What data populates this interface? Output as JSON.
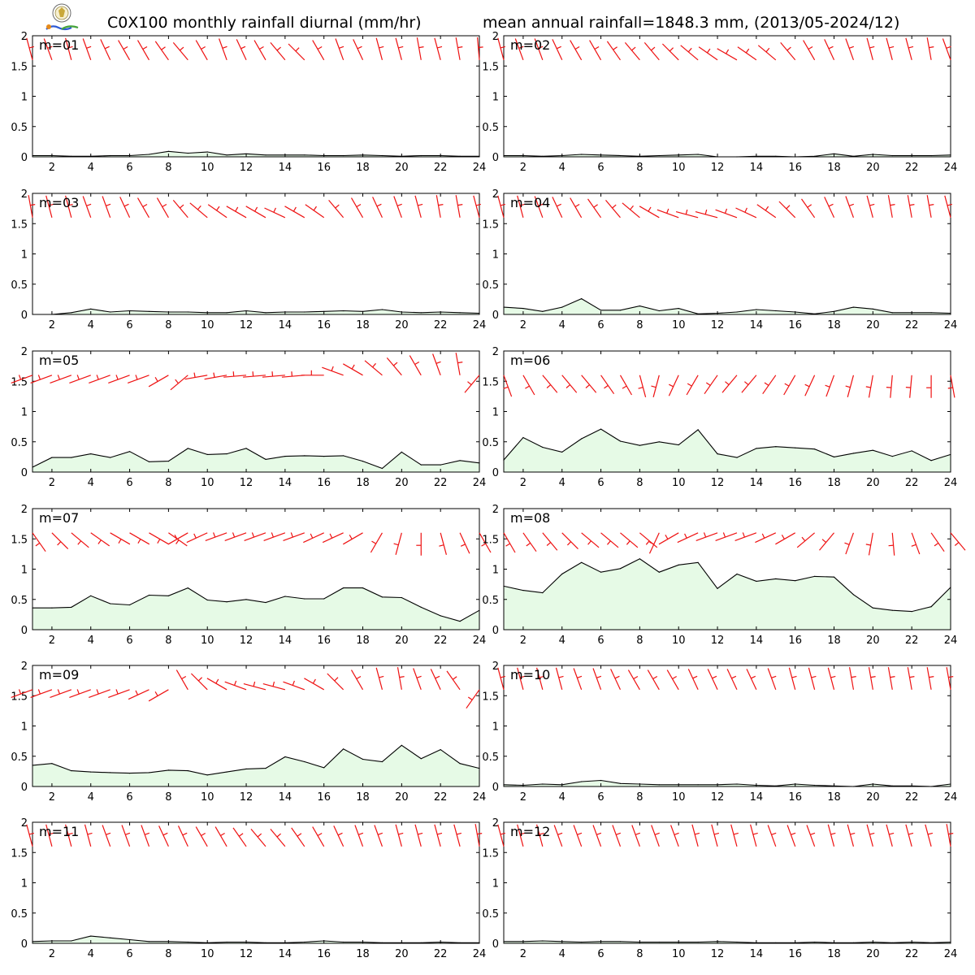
{
  "title_left": "C0X100 monthly rainfall diurnal (mm/hr)",
  "title_right": "mean annual rainfall=1848.3 mm, (2013/05-2024/12)",
  "colors": {
    "line": "#000000",
    "fill": "#e6fae6",
    "wind": "#ee1111",
    "frame": "#000000"
  },
  "chart_data": [
    {
      "type": "area",
      "label": "m=01",
      "x": [
        1,
        2,
        3,
        4,
        5,
        6,
        7,
        8,
        9,
        10,
        11,
        12,
        13,
        14,
        15,
        16,
        17,
        18,
        19,
        20,
        21,
        22,
        23,
        24
      ],
      "values": [
        0.02,
        0.02,
        0.01,
        0.01,
        0.02,
        0.02,
        0.04,
        0.09,
        0.06,
        0.08,
        0.03,
        0.05,
        0.03,
        0.03,
        0.03,
        0.02,
        0.02,
        0.03,
        0.02,
        0.01,
        0.02,
        0.02,
        0.01,
        0.01
      ],
      "xlim": [
        1,
        24
      ],
      "ylim": [
        0,
        2
      ],
      "xticks": [
        2,
        4,
        6,
        8,
        10,
        12,
        14,
        16,
        18,
        20,
        22,
        24
      ],
      "yticks": [
        0,
        0.5,
        1,
        1.5,
        2
      ],
      "wind_dir": [
        345,
        340,
        345,
        340,
        335,
        330,
        330,
        325,
        320,
        330,
        340,
        335,
        330,
        320,
        315,
        330,
        340,
        335,
        345,
        345,
        350,
        345,
        350,
        355
      ]
    },
    {
      "type": "area",
      "label": "m=02",
      "x": [
        1,
        2,
        3,
        4,
        5,
        6,
        7,
        8,
        9,
        10,
        11,
        12,
        13,
        14,
        15,
        16,
        17,
        18,
        19,
        20,
        21,
        22,
        23,
        24
      ],
      "values": [
        0.02,
        0.02,
        0.01,
        0.02,
        0.04,
        0.03,
        0.02,
        0.01,
        0.02,
        0.03,
        0.04,
        0.0,
        0.0,
        0.01,
        0.01,
        0.0,
        0.01,
        0.05,
        0.01,
        0.04,
        0.02,
        0.02,
        0.02,
        0.03
      ],
      "xlim": [
        1,
        24
      ],
      "ylim": [
        0,
        2
      ],
      "xticks": [
        2,
        4,
        6,
        8,
        10,
        12,
        14,
        16,
        18,
        20,
        22,
        24
      ],
      "yticks": [
        0,
        0.5,
        1,
        1.5,
        2
      ],
      "wind_dir": [
        345,
        340,
        340,
        335,
        330,
        330,
        325,
        320,
        320,
        315,
        310,
        305,
        300,
        305,
        310,
        320,
        330,
        335,
        340,
        345,
        345,
        345,
        350,
        340
      ]
    },
    {
      "type": "area",
      "label": "m=03",
      "x": [
        1,
        2,
        3,
        4,
        5,
        6,
        7,
        8,
        9,
        10,
        11,
        12,
        13,
        14,
        15,
        16,
        17,
        18,
        19,
        20,
        21,
        22,
        23,
        24
      ],
      "values": [
        0.0,
        0.0,
        0.03,
        0.09,
        0.04,
        0.06,
        0.05,
        0.04,
        0.04,
        0.03,
        0.03,
        0.06,
        0.03,
        0.04,
        0.04,
        0.05,
        0.06,
        0.05,
        0.08,
        0.04,
        0.03,
        0.04,
        0.03,
        0.02
      ],
      "xlim": [
        1,
        24
      ],
      "ylim": [
        0,
        2
      ],
      "xticks": [
        2,
        4,
        6,
        8,
        10,
        12,
        14,
        16,
        18,
        20,
        22,
        24
      ],
      "yticks": [
        0,
        0.5,
        1,
        1.5,
        2
      ],
      "wind_dir": [
        350,
        345,
        345,
        340,
        340,
        335,
        330,
        330,
        320,
        310,
        305,
        300,
        300,
        295,
        300,
        305,
        320,
        330,
        335,
        340,
        345,
        350,
        350,
        345
      ]
    },
    {
      "type": "area",
      "label": "m=04",
      "x": [
        1,
        2,
        3,
        4,
        5,
        6,
        7,
        8,
        9,
        10,
        11,
        12,
        13,
        14,
        15,
        16,
        17,
        18,
        19,
        20,
        21,
        22,
        23,
        24
      ],
      "values": [
        0.12,
        0.1,
        0.05,
        0.12,
        0.26,
        0.07,
        0.07,
        0.14,
        0.06,
        0.1,
        0.01,
        0.02,
        0.04,
        0.08,
        0.06,
        0.04,
        0.01,
        0.05,
        0.12,
        0.09,
        0.03,
        0.03,
        0.03,
        0.02
      ],
      "xlim": [
        1,
        24
      ],
      "ylim": [
        0,
        2
      ],
      "xticks": [
        2,
        4,
        6,
        8,
        10,
        12,
        14,
        16,
        18,
        20,
        22,
        24
      ],
      "yticks": [
        0,
        0.5,
        1,
        1.5,
        2
      ],
      "wind_dir": [
        345,
        345,
        340,
        335,
        330,
        325,
        320,
        310,
        300,
        290,
        285,
        285,
        290,
        295,
        305,
        315,
        325,
        335,
        340,
        345,
        350,
        350,
        350,
        345
      ]
    },
    {
      "type": "area",
      "label": "m=05",
      "x": [
        1,
        2,
        3,
        4,
        5,
        6,
        7,
        8,
        9,
        10,
        11,
        12,
        13,
        14,
        15,
        16,
        17,
        18,
        19,
        20,
        21,
        22,
        23,
        24
      ],
      "values": [
        0.08,
        0.24,
        0.24,
        0.3,
        0.24,
        0.34,
        0.17,
        0.18,
        0.39,
        0.29,
        0.3,
        0.39,
        0.21,
        0.26,
        0.27,
        0.26,
        0.27,
        0.18,
        0.06,
        0.33,
        0.12,
        0.12,
        0.19,
        0.15
      ],
      "xlim": [
        1,
        24
      ],
      "ylim": [
        0,
        2
      ],
      "xticks": [
        2,
        4,
        6,
        8,
        10,
        12,
        14,
        16,
        18,
        20,
        22,
        24
      ],
      "yticks": [
        0,
        0.5,
        1,
        1.5,
        2
      ],
      "wind_dir": [
        250,
        250,
        250,
        250,
        250,
        250,
        250,
        240,
        230,
        260,
        260,
        265,
        265,
        265,
        265,
        270,
        290,
        300,
        310,
        320,
        330,
        340,
        350,
        220
      ]
    },
    {
      "type": "area",
      "label": "m=06",
      "x": [
        1,
        2,
        3,
        4,
        5,
        6,
        7,
        8,
        9,
        10,
        11,
        12,
        13,
        14,
        15,
        16,
        17,
        18,
        19,
        20,
        21,
        22,
        23,
        24
      ],
      "values": [
        0.2,
        0.57,
        0.41,
        0.33,
        0.55,
        0.71,
        0.51,
        0.44,
        0.5,
        0.45,
        0.7,
        0.3,
        0.24,
        0.39,
        0.42,
        0.4,
        0.38,
        0.25,
        0.31,
        0.36,
        0.26,
        0.35,
        0.19,
        0.29
      ],
      "xlim": [
        1,
        24
      ],
      "ylim": [
        0,
        2
      ],
      "xticks": [
        2,
        4,
        6,
        8,
        10,
        12,
        14,
        16,
        18,
        20,
        22,
        24
      ],
      "yticks": [
        0,
        0.5,
        1,
        1.5,
        2
      ],
      "wind_dir": [
        160,
        150,
        140,
        140,
        140,
        145,
        150,
        165,
        195,
        205,
        210,
        215,
        220,
        220,
        215,
        210,
        205,
        200,
        195,
        190,
        185,
        185,
        180,
        170
      ]
    },
    {
      "type": "area",
      "label": "m=07",
      "x": [
        1,
        2,
        3,
        4,
        5,
        6,
        7,
        8,
        9,
        10,
        11,
        12,
        13,
        14,
        15,
        16,
        17,
        18,
        19,
        20,
        21,
        22,
        23,
        24
      ],
      "values": [
        0.36,
        0.36,
        0.37,
        0.56,
        0.43,
        0.41,
        0.57,
        0.56,
        0.69,
        0.49,
        0.46,
        0.5,
        0.45,
        0.55,
        0.51,
        0.51,
        0.69,
        0.69,
        0.54,
        0.53,
        0.37,
        0.23,
        0.14,
        0.32
      ],
      "xlim": [
        1,
        24
      ],
      "ylim": [
        0,
        2
      ],
      "xticks": [
        2,
        4,
        6,
        8,
        10,
        12,
        14,
        16,
        18,
        20,
        22,
        24
      ],
      "yticks": [
        0,
        0.5,
        1,
        1.5,
        2
      ],
      "wind_dir": [
        145,
        135,
        130,
        125,
        120,
        120,
        120,
        125,
        240,
        245,
        250,
        250,
        250,
        250,
        250,
        245,
        245,
        240,
        210,
        195,
        180,
        165,
        155,
        150
      ]
    },
    {
      "type": "area",
      "label": "m=08",
      "x": [
        1,
        2,
        3,
        4,
        5,
        6,
        7,
        8,
        9,
        10,
        11,
        12,
        13,
        14,
        15,
        16,
        17,
        18,
        19,
        20,
        21,
        22,
        23,
        24
      ],
      "values": [
        0.72,
        0.65,
        0.61,
        0.92,
        1.11,
        0.95,
        1.01,
        1.17,
        0.95,
        1.07,
        1.11,
        0.68,
        0.92,
        0.8,
        0.84,
        0.81,
        0.88,
        0.87,
        0.58,
        0.36,
        0.32,
        0.3,
        0.38,
        0.7
      ],
      "xlim": [
        1,
        24
      ],
      "ylim": [
        0,
        2
      ],
      "xticks": [
        2,
        4,
        6,
        8,
        10,
        12,
        14,
        16,
        18,
        20,
        22,
        24
      ],
      "yticks": [
        0,
        0.5,
        1,
        1.5,
        2
      ],
      "wind_dir": [
        150,
        145,
        140,
        135,
        130,
        130,
        130,
        130,
        205,
        240,
        245,
        250,
        250,
        250,
        245,
        240,
        230,
        220,
        200,
        190,
        175,
        160,
        145,
        140
      ]
    },
    {
      "type": "area",
      "label": "m=09",
      "x": [
        1,
        2,
        3,
        4,
        5,
        6,
        7,
        8,
        9,
        10,
        11,
        12,
        13,
        14,
        15,
        16,
        17,
        18,
        19,
        20,
        21,
        22,
        23,
        24
      ],
      "values": [
        0.35,
        0.38,
        0.26,
        0.24,
        0.23,
        0.22,
        0.23,
        0.27,
        0.26,
        0.19,
        0.24,
        0.29,
        0.3,
        0.49,
        0.41,
        0.31,
        0.62,
        0.45,
        0.41,
        0.68,
        0.46,
        0.61,
        0.38,
        0.3
      ],
      "xlim": [
        1,
        24
      ],
      "ylim": [
        0,
        2
      ],
      "xticks": [
        2,
        4,
        6,
        8,
        10,
        12,
        14,
        16,
        18,
        20,
        22,
        24
      ],
      "yticks": [
        0,
        0.5,
        1,
        1.5,
        2
      ],
      "wind_dir": [
        250,
        250,
        250,
        250,
        250,
        250,
        245,
        240,
        330,
        315,
        300,
        290,
        285,
        285,
        290,
        300,
        315,
        330,
        345,
        350,
        340,
        335,
        325,
        215
      ]
    },
    {
      "type": "area",
      "label": "m=10",
      "x": [
        1,
        2,
        3,
        4,
        5,
        6,
        7,
        8,
        9,
        10,
        11,
        12,
        13,
        14,
        15,
        16,
        17,
        18,
        19,
        20,
        21,
        22,
        23,
        24
      ],
      "values": [
        0.03,
        0.02,
        0.04,
        0.03,
        0.08,
        0.1,
        0.05,
        0.04,
        0.03,
        0.03,
        0.03,
        0.03,
        0.04,
        0.02,
        0.01,
        0.04,
        0.02,
        0.01,
        0.0,
        0.04,
        0.01,
        0.01,
        0.0,
        0.04
      ],
      "xlim": [
        1,
        24
      ],
      "ylim": [
        0,
        2
      ],
      "xticks": [
        2,
        4,
        6,
        8,
        10,
        12,
        14,
        16,
        18,
        20,
        22,
        24
      ],
      "yticks": [
        0,
        0.5,
        1,
        1.5,
        2
      ],
      "wind_dir": [
        345,
        345,
        345,
        345,
        340,
        340,
        335,
        330,
        330,
        330,
        335,
        335,
        335,
        335,
        340,
        345,
        345,
        345,
        350,
        350,
        350,
        350,
        350,
        350
      ]
    },
    {
      "type": "area",
      "label": "m=11",
      "x": [
        1,
        2,
        3,
        4,
        5,
        6,
        7,
        8,
        9,
        10,
        11,
        12,
        13,
        14,
        15,
        16,
        17,
        18,
        19,
        20,
        21,
        22,
        23,
        24
      ],
      "values": [
        0.03,
        0.04,
        0.04,
        0.12,
        0.09,
        0.06,
        0.03,
        0.03,
        0.02,
        0.01,
        0.02,
        0.02,
        0.01,
        0.01,
        0.02,
        0.04,
        0.02,
        0.02,
        0.01,
        0.01,
        0.01,
        0.02,
        0.01,
        0.01
      ],
      "xlim": [
        1,
        24
      ],
      "ylim": [
        0,
        2
      ],
      "xticks": [
        2,
        4,
        6,
        8,
        10,
        12,
        14,
        16,
        18,
        20,
        22,
        24
      ],
      "yticks": [
        0,
        0.5,
        1,
        1.5,
        2
      ],
      "wind_dir": [
        345,
        345,
        345,
        345,
        340,
        340,
        340,
        335,
        335,
        330,
        330,
        325,
        320,
        320,
        325,
        330,
        335,
        340,
        340,
        345,
        345,
        345,
        345,
        350
      ]
    },
    {
      "type": "area",
      "label": "m=12",
      "x": [
        1,
        2,
        3,
        4,
        5,
        6,
        7,
        8,
        9,
        10,
        11,
        12,
        13,
        14,
        15,
        16,
        17,
        18,
        19,
        20,
        21,
        22,
        23,
        24
      ],
      "values": [
        0.03,
        0.03,
        0.04,
        0.03,
        0.02,
        0.03,
        0.03,
        0.02,
        0.02,
        0.02,
        0.02,
        0.03,
        0.02,
        0.01,
        0.01,
        0.01,
        0.02,
        0.01,
        0.01,
        0.02,
        0.01,
        0.02,
        0.01,
        0.02
      ],
      "xlim": [
        1,
        24
      ],
      "ylim": [
        0,
        2
      ],
      "xticks": [
        2,
        4,
        6,
        8,
        10,
        12,
        14,
        16,
        18,
        20,
        22,
        24
      ],
      "yticks": [
        0,
        0.5,
        1,
        1.5,
        2
      ],
      "wind_dir": [
        345,
        345,
        345,
        340,
        340,
        340,
        340,
        340,
        340,
        340,
        345,
        345,
        345,
        345,
        340,
        340,
        340,
        345,
        345,
        345,
        345,
        345,
        345,
        350
      ]
    }
  ]
}
